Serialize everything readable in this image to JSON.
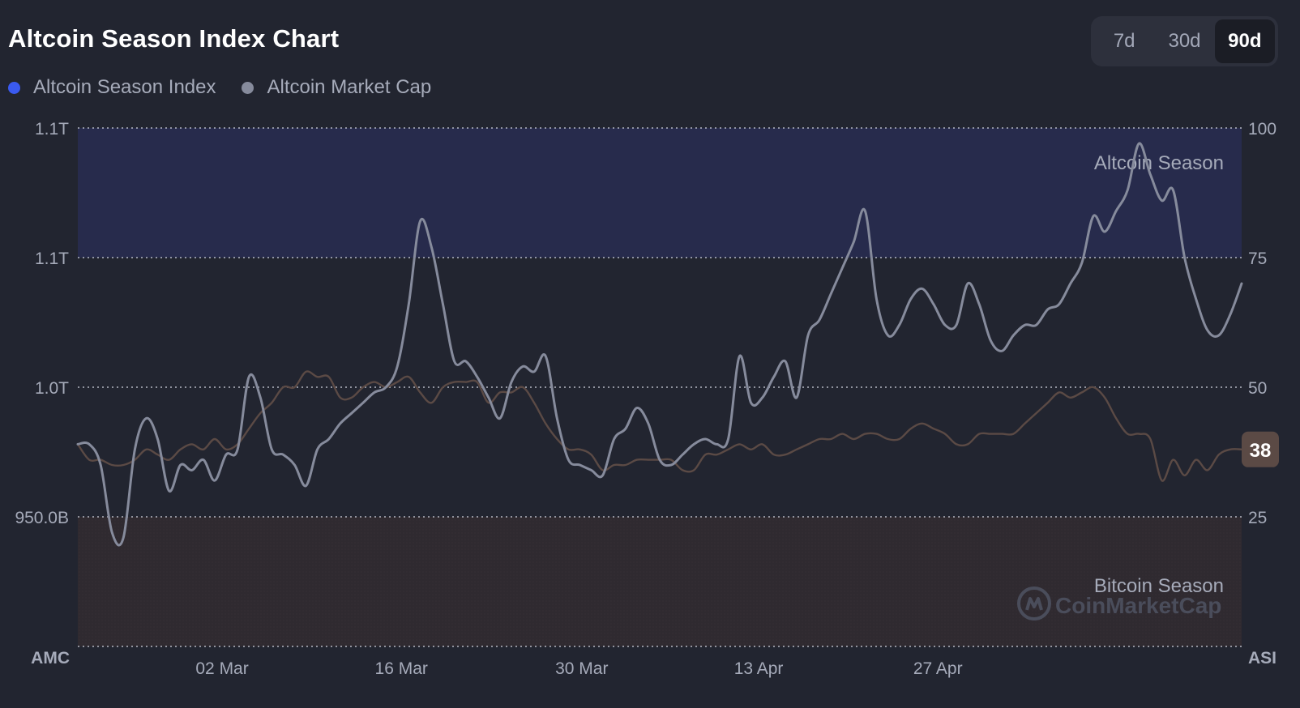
{
  "header": {
    "title": "Altcoin Season Index Chart"
  },
  "range_tabs": [
    {
      "label": "7d",
      "active": false
    },
    {
      "label": "30d",
      "active": false
    },
    {
      "label": "90d",
      "active": true
    }
  ],
  "legend": [
    {
      "label": "Altcoin Season Index",
      "color": "#3a5af0"
    },
    {
      "label": "Altcoin Market Cap",
      "color": "#868b9c"
    }
  ],
  "watermark": "CoinMarketCap",
  "chart_data": {
    "type": "line",
    "x_ticks": [
      "02 Mar",
      "16 Mar",
      "30 Mar",
      "13 Apr",
      "27 Apr"
    ],
    "left_axis": {
      "title": "AMC",
      "ticks": [
        "1.1T",
        "1.1T",
        "1.0T",
        "950.0B"
      ],
      "tick_positions_index_units": [
        100,
        75,
        50,
        25
      ]
    },
    "right_axis": {
      "title": "ASI",
      "ticks": [
        "100",
        "75",
        "50",
        "25"
      ],
      "range": [
        0,
        100
      ]
    },
    "zones": [
      {
        "label": "Altcoin Season",
        "from": 75,
        "to": 100,
        "color": "#272b4c"
      },
      {
        "label": "Bitcoin Season",
        "from": 0,
        "to": 25,
        "color": "#2f2a30"
      }
    ],
    "current_value": "38",
    "grid": true,
    "legend_position": "top-left",
    "series": [
      {
        "name": "Altcoin Season Index",
        "color": "#5b4a45",
        "values": [
          39,
          36,
          36,
          35,
          35,
          36,
          38,
          37,
          36,
          38,
          39,
          38,
          40,
          38,
          39,
          42,
          45,
          47,
          50,
          50,
          53,
          52,
          52,
          48,
          48,
          50,
          51,
          50,
          51,
          52,
          49,
          47,
          50,
          51,
          51,
          51,
          47,
          49,
          49,
          50,
          47,
          43,
          40,
          38,
          38,
          37,
          34,
          35,
          35,
          36,
          36,
          36,
          36,
          34,
          34,
          37,
          37,
          38,
          39,
          38,
          39,
          37,
          37,
          38,
          39,
          40,
          40,
          41,
          40,
          41,
          41,
          40,
          40,
          42,
          43,
          42,
          41,
          39,
          39,
          41,
          41,
          41,
          41,
          43,
          45,
          47,
          49,
          48,
          49,
          50,
          48,
          44,
          41,
          41,
          40,
          32,
          36,
          33,
          36,
          34,
          37,
          38,
          38
        ]
      },
      {
        "name": "Altcoin Market Cap",
        "color": "#868b9c",
        "values": [
          39,
          39,
          35,
          22,
          21,
          38,
          44,
          40,
          30,
          35,
          34,
          36,
          32,
          37,
          38,
          52,
          48,
          38,
          37,
          35,
          31,
          38,
          40,
          43,
          45,
          47,
          49,
          50,
          54,
          66,
          82,
          77,
          66,
          55,
          55,
          52,
          48,
          44,
          51,
          54,
          53,
          56,
          44,
          36,
          35,
          34,
          33,
          40,
          42,
          46,
          43,
          36,
          35,
          37,
          39,
          40,
          39,
          40,
          56,
          47,
          48,
          52,
          55,
          48,
          60,
          63,
          68,
          73,
          78,
          84,
          67,
          60,
          62,
          67,
          69,
          66,
          62,
          62,
          70,
          66,
          59,
          57,
          60,
          62,
          62,
          65,
          66,
          70,
          74,
          83,
          80,
          84,
          88,
          97,
          91,
          86,
          88,
          75,
          67,
          61,
          60,
          64,
          70
        ]
      }
    ]
  }
}
